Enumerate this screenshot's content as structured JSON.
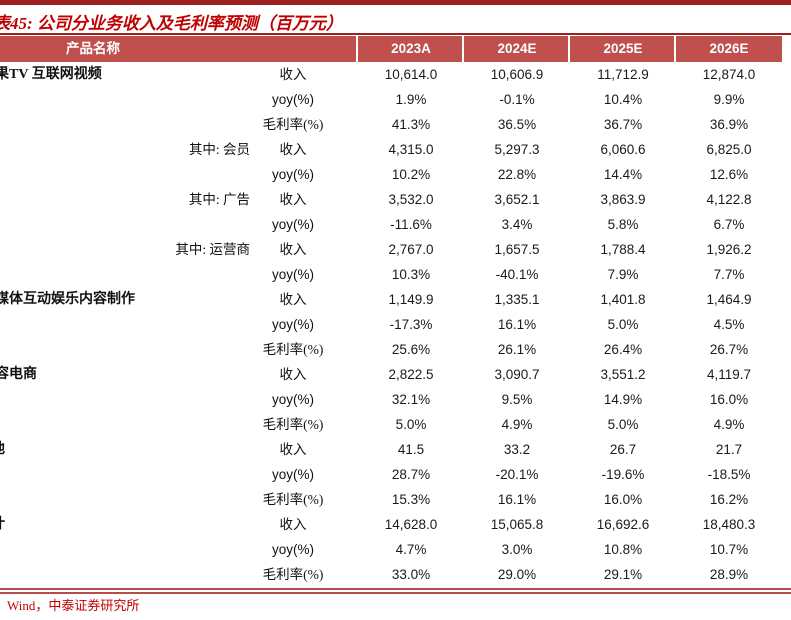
{
  "title": "表45: 公司分业务收入及毛利率预测（百万元）",
  "header": {
    "product_col": "产品名称",
    "years": [
      "2023A",
      "2024E",
      "2025E",
      "2026E"
    ]
  },
  "rows": [
    {
      "label": "果TV 互联网视频",
      "label_type": "main",
      "metric": "收入",
      "metric_type": "kai",
      "values": [
        "10,614.0",
        "10,606.9",
        "11,712.9",
        "12,874.0"
      ]
    },
    {
      "label": "",
      "label_type": "",
      "metric": "yoy(%)",
      "metric_type": "sans",
      "values": [
        "1.9%",
        "-0.1%",
        "10.4%",
        "9.9%"
      ]
    },
    {
      "label": "",
      "label_type": "",
      "metric": "毛利率(%)",
      "metric_type": "kai",
      "values": [
        "41.3%",
        "36.5%",
        "36.7%",
        "36.9%"
      ]
    },
    {
      "label": "其中: 会员",
      "label_type": "sub",
      "metric": "收入",
      "metric_type": "kai",
      "values": [
        "4,315.0",
        "5,297.3",
        "6,060.6",
        "6,825.0"
      ]
    },
    {
      "label": "",
      "label_type": "",
      "metric": "yoy(%)",
      "metric_type": "sans",
      "values": [
        "10.2%",
        "22.8%",
        "14.4%",
        "12.6%"
      ]
    },
    {
      "label": "其中: 广告",
      "label_type": "sub",
      "metric": "收入",
      "metric_type": "kai",
      "values": [
        "3,532.0",
        "3,652.1",
        "3,863.9",
        "4,122.8"
      ]
    },
    {
      "label": "",
      "label_type": "",
      "metric": "yoy(%)",
      "metric_type": "sans",
      "values": [
        "-11.6%",
        "3.4%",
        "5.8%",
        "6.7%"
      ]
    },
    {
      "label": "其中: 运营商",
      "label_type": "sub",
      "metric": "收入",
      "metric_type": "kai",
      "values": [
        "2,767.0",
        "1,657.5",
        "1,788.4",
        "1,926.2"
      ]
    },
    {
      "label": "",
      "label_type": "",
      "metric": "yoy(%)",
      "metric_type": "sans",
      "values": [
        "10.3%",
        "-40.1%",
        "7.9%",
        "7.7%"
      ]
    },
    {
      "label": "媒体互动娱乐内容制作",
      "label_type": "main",
      "metric": "收入",
      "metric_type": "kai",
      "values": [
        "1,149.9",
        "1,335.1",
        "1,401.8",
        "1,464.9"
      ]
    },
    {
      "label": "",
      "label_type": "",
      "metric": "yoy(%)",
      "metric_type": "sans",
      "values": [
        "-17.3%",
        "16.1%",
        "5.0%",
        "4.5%"
      ]
    },
    {
      "label": "",
      "label_type": "",
      "metric": "毛利率(%)",
      "metric_type": "kai",
      "values": [
        "25.6%",
        "26.1%",
        "26.4%",
        "26.7%"
      ]
    },
    {
      "label": "容电商",
      "label_type": "main",
      "metric": "收入",
      "metric_type": "kai",
      "values": [
        "2,822.5",
        "3,090.7",
        "3,551.2",
        "4,119.7"
      ]
    },
    {
      "label": "",
      "label_type": "",
      "metric": "yoy(%)",
      "metric_type": "sans",
      "values": [
        "32.1%",
        "9.5%",
        "14.9%",
        "16.0%"
      ]
    },
    {
      "label": "",
      "label_type": "",
      "metric": "毛利率(%)",
      "metric_type": "kai",
      "values": [
        "5.0%",
        "4.9%",
        "5.0%",
        "4.9%"
      ]
    },
    {
      "label": "他",
      "label_type": "main2",
      "metric": "收入",
      "metric_type": "kai",
      "values": [
        "41.5",
        "33.2",
        "26.7",
        "21.7"
      ]
    },
    {
      "label": "",
      "label_type": "",
      "metric": "yoy(%)",
      "metric_type": "sans",
      "values": [
        "28.7%",
        "-20.1%",
        "-19.6%",
        "-18.5%"
      ]
    },
    {
      "label": "",
      "label_type": "",
      "metric": "毛利率(%)",
      "metric_type": "kai",
      "values": [
        "15.3%",
        "16.1%",
        "16.0%",
        "16.2%"
      ]
    },
    {
      "label": "计",
      "label_type": "main2",
      "metric": "收入",
      "metric_type": "kai",
      "values": [
        "14,628.0",
        "15,065.8",
        "16,692.6",
        "18,480.3"
      ]
    },
    {
      "label": "",
      "label_type": "",
      "metric": "yoy(%)",
      "metric_type": "sans",
      "values": [
        "4.7%",
        "3.0%",
        "10.8%",
        "10.7%"
      ]
    },
    {
      "label": "",
      "label_type": "",
      "metric": "毛利率(%)",
      "metric_type": "kai",
      "values": [
        "33.0%",
        "29.0%",
        "29.1%",
        "28.9%"
      ]
    }
  ],
  "source": "Wind，中泰证券研究所",
  "colors": {
    "topbar": "#9e2121",
    "title": "#c00000",
    "header_bg": "#c0504d",
    "rule": "#b94b48",
    "source": "#c00000"
  }
}
